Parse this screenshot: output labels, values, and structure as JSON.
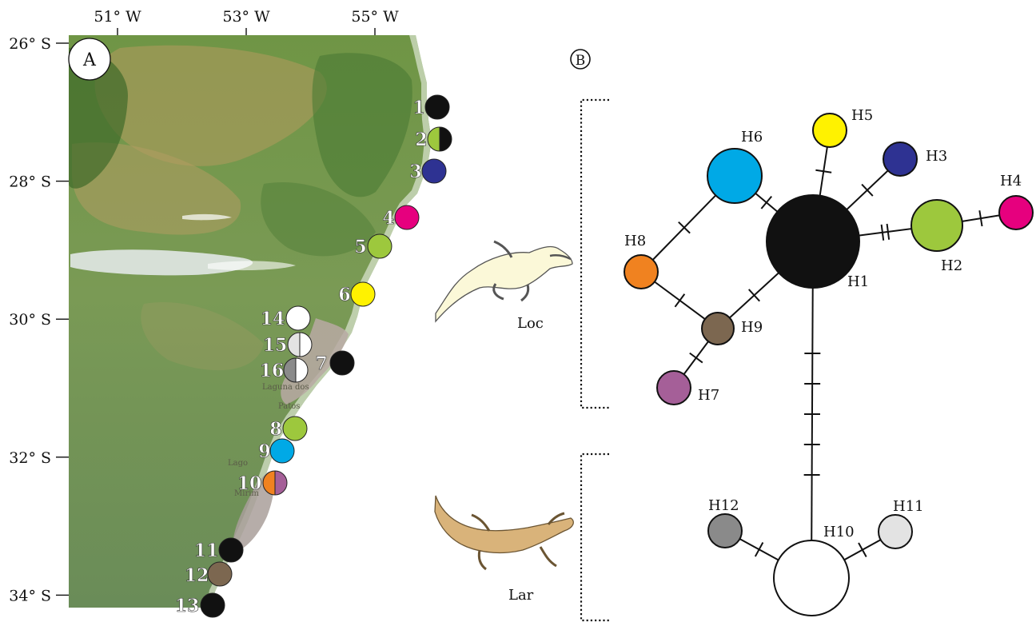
{
  "panel_a": {
    "letter": "A",
    "longitude_ticks": [
      {
        "label": "51° W",
        "lon": -51
      },
      {
        "label": "53° W",
        "lon": -53
      },
      {
        "label": "55° W",
        "lon": -55
      }
    ],
    "latitude_ticks": [
      {
        "label": "26° S",
        "lat": -26
      },
      {
        "label": "28° S",
        "lat": -28
      },
      {
        "label": "30° S",
        "lat": -30
      },
      {
        "label": "32° S",
        "lat": -32
      },
      {
        "label": "34° S",
        "lat": -34
      }
    ],
    "lake_labels": {
      "patos_1": "Laguna dos",
      "patos_2": "Patos",
      "mirim_1": "Lago",
      "mirim_2": "Mirim"
    },
    "sites": [
      {
        "num": "1",
        "haplotypes": [
          "H1"
        ]
      },
      {
        "num": "2",
        "haplotypes": [
          "H2",
          "H1"
        ]
      },
      {
        "num": "3",
        "haplotypes": [
          "H3"
        ]
      },
      {
        "num": "4",
        "haplotypes": [
          "H4"
        ]
      },
      {
        "num": "5",
        "haplotypes": [
          "H2"
        ]
      },
      {
        "num": "6",
        "haplotypes": [
          "H5"
        ]
      },
      {
        "num": "7",
        "haplotypes": [
          "H1"
        ]
      },
      {
        "num": "8",
        "haplotypes": [
          "H2"
        ]
      },
      {
        "num": "9",
        "haplotypes": [
          "H6"
        ]
      },
      {
        "num": "10",
        "haplotypes": [
          "H8",
          "H7"
        ]
      },
      {
        "num": "11",
        "haplotypes": [
          "H1"
        ]
      },
      {
        "num": "12",
        "haplotypes": [
          "H9"
        ]
      },
      {
        "num": "13",
        "haplotypes": [
          "H1"
        ]
      },
      {
        "num": "14",
        "haplotypes": [
          "H10"
        ]
      },
      {
        "num": "15",
        "haplotypes": [
          "H11",
          "H10"
        ]
      },
      {
        "num": "16",
        "haplotypes": [
          "H12",
          "H10"
        ]
      }
    ]
  },
  "panel_b": {
    "letter": "B",
    "species": [
      {
        "label": "Loc",
        "color": "#fbf8d8"
      },
      {
        "label": "Lar",
        "color": "#d9b37a"
      }
    ],
    "haplotypes": [
      {
        "id": "H1",
        "color": "#111111"
      },
      {
        "id": "H2",
        "color": "#9dc83d"
      },
      {
        "id": "H3",
        "color": "#2e3292"
      },
      {
        "id": "H4",
        "color": "#e6007e"
      },
      {
        "id": "H5",
        "color": "#fff200"
      },
      {
        "id": "H6",
        "color": "#00a9e6"
      },
      {
        "id": "H7",
        "color": "#a55f98"
      },
      {
        "id": "H8",
        "color": "#f08220"
      },
      {
        "id": "H9",
        "color": "#7c6750"
      },
      {
        "id": "H10",
        "color": "#ffffff"
      },
      {
        "id": "H11",
        "color": "#e3e3e3"
      },
      {
        "id": "H12",
        "color": "#8a8a8a"
      }
    ],
    "edges": [
      {
        "from": "H1",
        "to": "H5",
        "mutations": 1
      },
      {
        "from": "H1",
        "to": "H3",
        "mutations": 1
      },
      {
        "from": "H1",
        "to": "H2",
        "mutations": 2
      },
      {
        "from": "H2",
        "to": "H4",
        "mutations": 1
      },
      {
        "from": "H1",
        "to": "H6",
        "mutations": 1
      },
      {
        "from": "H1",
        "to": "H9",
        "mutations": 1
      },
      {
        "from": "H6",
        "to": "H8",
        "mutations": 1
      },
      {
        "from": "H8",
        "to": "H9",
        "mutations": 1
      },
      {
        "from": "H9",
        "to": "H7",
        "mutations": 1
      },
      {
        "from": "H1",
        "to": "H10",
        "mutations": 5
      },
      {
        "from": "H10",
        "to": "H12",
        "mutations": 1
      },
      {
        "from": "H10",
        "to": "H11",
        "mutations": 1
      }
    ]
  }
}
